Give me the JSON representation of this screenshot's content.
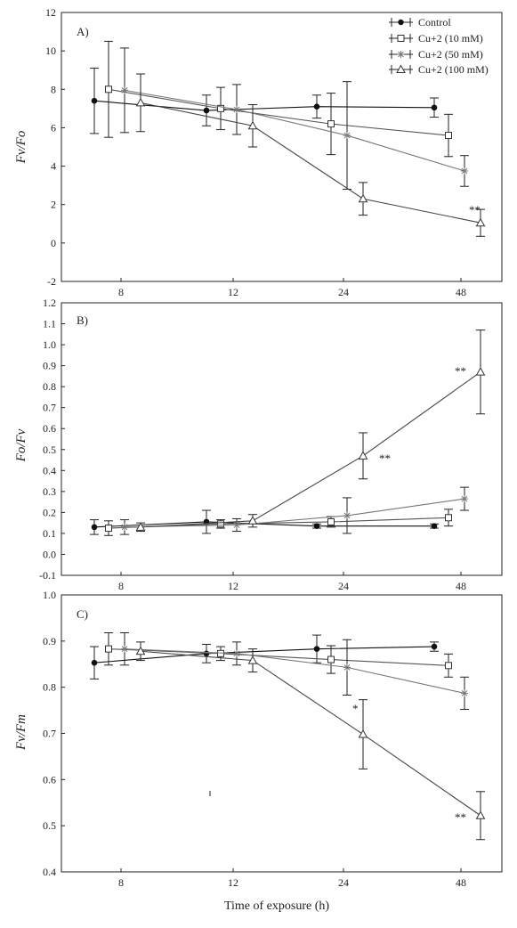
{
  "chart_data": [
    {
      "type": "line",
      "panel_label": "A)",
      "ylabel": "Fv/Fo",
      "ylim": [
        -2,
        12
      ],
      "yticks": [
        "-2",
        "0",
        "2",
        "4",
        "6",
        "8",
        "10",
        "12"
      ],
      "categories": [
        "8",
        "12",
        "24",
        "48"
      ],
      "series": [
        {
          "name": "Control",
          "marker": "circle",
          "values": [
            7.4,
            6.9,
            7.1,
            7.05
          ],
          "errors": [
            1.7,
            0.8,
            0.6,
            0.5
          ]
        },
        {
          "name": "Cu+2 (10 mM)",
          "marker": "square",
          "values": [
            8.0,
            7.0,
            6.2,
            5.6
          ],
          "errors": [
            2.5,
            1.1,
            1.6,
            1.1
          ]
        },
        {
          "name": "Cu+2 (50 mM)",
          "marker": "star",
          "values": [
            7.95,
            6.95,
            5.6,
            3.75
          ],
          "errors": [
            2.2,
            1.3,
            2.8,
            0.8
          ]
        },
        {
          "name": "Cu+2 (100 mM)",
          "marker": "triangle",
          "values": [
            7.3,
            6.1,
            2.3,
            1.05
          ],
          "errors": [
            1.5,
            1.1,
            0.85,
            0.7
          ]
        }
      ],
      "annotations": [
        "**"
      ],
      "legend": {
        "position": "top-right",
        "entries": [
          "Control",
          "Cu+2 (10 mM)",
          "Cu+2 (50 mM)",
          "Cu+2 (100 mM)"
        ]
      }
    },
    {
      "type": "line",
      "panel_label": "B)",
      "ylabel": "Fo/Fv",
      "ylim": [
        -0.1,
        1.2
      ],
      "yticks": [
        "-0.1",
        "0.0",
        "0.1",
        "0.2",
        "0.3",
        "0.4",
        "0.5",
        "0.6",
        "0.7",
        "0.8",
        "0.9",
        "1.0",
        "1.1",
        "1.2"
      ],
      "categories": [
        "8",
        "12",
        "24",
        "48"
      ],
      "series": [
        {
          "name": "Control",
          "marker": "circle",
          "values": [
            0.13,
            0.155,
            0.135,
            0.135
          ],
          "errors": [
            0.035,
            0.055,
            0.01,
            0.01
          ]
        },
        {
          "name": "Cu+2 (10 mM)",
          "marker": "square",
          "values": [
            0.125,
            0.145,
            0.155,
            0.175
          ],
          "errors": [
            0.035,
            0.02,
            0.025,
            0.04
          ]
        },
        {
          "name": "Cu+2 (50 mM)",
          "marker": "star",
          "values": [
            0.13,
            0.14,
            0.185,
            0.265
          ],
          "errors": [
            0.035,
            0.03,
            0.085,
            0.055
          ]
        },
        {
          "name": "Cu+2 (100 mM)",
          "marker": "triangle",
          "values": [
            0.13,
            0.16,
            0.47,
            0.87
          ],
          "errors": [
            0.02,
            0.03,
            0.11,
            0.2
          ]
        }
      ],
      "annotations": [
        "**",
        "**"
      ]
    },
    {
      "type": "line",
      "panel_label": "C)",
      "ylabel": "Fv/Fm",
      "xlabel": "Time of exposure (h)",
      "ylim": [
        0.4,
        1.0
      ],
      "yticks": [
        "0.4",
        "0.5",
        "0.6",
        "0.7",
        "0.8",
        "0.9",
        "1.0"
      ],
      "categories": [
        "8",
        "12",
        "24",
        "48"
      ],
      "series": [
        {
          "name": "Control",
          "marker": "circle",
          "values": [
            0.853,
            0.873,
            0.883,
            0.888
          ],
          "errors": [
            0.035,
            0.02,
            0.03,
            0.01
          ]
        },
        {
          "name": "Cu+2 (10 mM)",
          "marker": "square",
          "values": [
            0.883,
            0.873,
            0.86,
            0.847
          ],
          "errors": [
            0.035,
            0.015,
            0.03,
            0.025
          ]
        },
        {
          "name": "Cu+2 (50 mM)",
          "marker": "star",
          "values": [
            0.883,
            0.873,
            0.843,
            0.787
          ],
          "errors": [
            0.035,
            0.025,
            0.06,
            0.035
          ]
        },
        {
          "name": "Cu+2 (100 mM)",
          "marker": "triangle",
          "values": [
            0.878,
            0.858,
            0.698,
            0.522
          ],
          "errors": [
            0.02,
            0.025,
            0.075,
            0.052
          ]
        }
      ],
      "annotations": [
        "*",
        "**"
      ]
    }
  ]
}
